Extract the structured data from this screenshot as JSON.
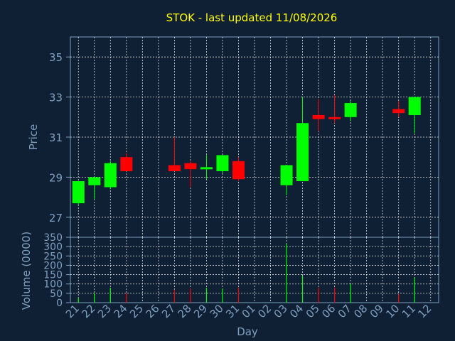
{
  "chart_data": {
    "type": "candlestick",
    "title": "STOK - last updated 11/08/2026",
    "xlabel": "Day",
    "ylabel_price": "Price",
    "ylabel_volume": "Volume (0000)",
    "price_ticks": [
      27,
      29,
      31,
      33,
      35
    ],
    "price_range": [
      26.0,
      36.0
    ],
    "volume_ticks": [
      0,
      50,
      100,
      150,
      200,
      250,
      300,
      350
    ],
    "volume_range": [
      0,
      350
    ],
    "up_color": "#00ff00",
    "down_color": "#ff0000",
    "background_color": "#0f2035",
    "grid": true,
    "x_labels": [
      "21",
      "22",
      "23",
      "24",
      "25",
      "26",
      "27",
      "28",
      "29",
      "30",
      "31",
      "01",
      "02",
      "03",
      "04",
      "05",
      "06",
      "07",
      "08",
      "09",
      "10",
      "11",
      "12"
    ],
    "candles": [
      {
        "day": "21",
        "open": 27.7,
        "high": 28.8,
        "low": 27.6,
        "close": 28.8,
        "volume": 25
      },
      {
        "day": "22",
        "open": 28.6,
        "high": 29.0,
        "low": 27.9,
        "close": 29.0,
        "volume": 50
      },
      {
        "day": "23",
        "open": 28.5,
        "high": 29.8,
        "low": 28.4,
        "close": 29.7,
        "volume": 80
      },
      {
        "day": "24",
        "open": 30.0,
        "high": 30.2,
        "low": 29.3,
        "close": 29.3,
        "volume": 50
      },
      {
        "day": "27",
        "open": 29.6,
        "high": 31.0,
        "low": 29.3,
        "close": 29.3,
        "volume": 70
      },
      {
        "day": "28",
        "open": 29.7,
        "high": 29.8,
        "low": 28.5,
        "close": 29.4,
        "volume": 75
      },
      {
        "day": "29",
        "open": 29.4,
        "high": 30.1,
        "low": 28.9,
        "close": 29.5,
        "volume": 80
      },
      {
        "day": "30",
        "open": 29.3,
        "high": 30.1,
        "low": 29.2,
        "close": 30.1,
        "volume": 75
      },
      {
        "day": "31",
        "open": 29.8,
        "high": 30.0,
        "low": 28.8,
        "close": 28.9,
        "volume": 80
      },
      {
        "day": "03",
        "open": 28.6,
        "high": 29.6,
        "low": 28.1,
        "close": 29.6,
        "volume": 315
      },
      {
        "day": "04",
        "open": 28.8,
        "high": 33.0,
        "low": 28.8,
        "close": 31.7,
        "volume": 145
      },
      {
        "day": "05",
        "open": 32.1,
        "high": 32.9,
        "low": 31.3,
        "close": 31.9,
        "volume": 80
      },
      {
        "day": "06",
        "open": 32.0,
        "high": 33.1,
        "low": 31.7,
        "close": 31.9,
        "volume": 80
      },
      {
        "day": "07",
        "open": 32.0,
        "high": 32.8,
        "low": 31.8,
        "close": 32.7,
        "volume": 100
      },
      {
        "day": "10",
        "open": 32.4,
        "high": 32.8,
        "low": 32.0,
        "close": 32.2,
        "volume": 45
      },
      {
        "day": "11",
        "open": 32.1,
        "high": 33.0,
        "low": 31.2,
        "close": 33.0,
        "volume": 135
      }
    ]
  }
}
